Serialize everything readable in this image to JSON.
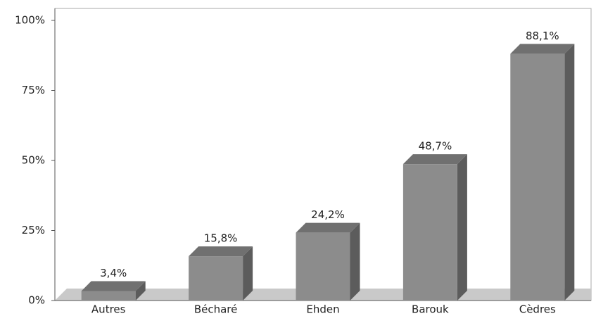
{
  "chart_data": {
    "type": "bar3d",
    "categories": [
      "Autres",
      "Bécharé",
      "Ehden",
      "Barouk",
      "Cèdres"
    ],
    "values": [
      3.4,
      15.8,
      24.2,
      48.7,
      88.1
    ],
    "value_labels": [
      "3,4%",
      "15,8%",
      "24,2%",
      "48,7%",
      "88,1%"
    ],
    "color": "#8c8c8c",
    "ylim": [
      0,
      100
    ],
    "yticks": [
      {
        "value": 0,
        "label": "0%"
      },
      {
        "value": 25,
        "label": "25%"
      },
      {
        "value": 50,
        "label": "50%"
      },
      {
        "value": 75,
        "label": "75%"
      },
      {
        "value": 100,
        "label": "100%"
      }
    ]
  }
}
